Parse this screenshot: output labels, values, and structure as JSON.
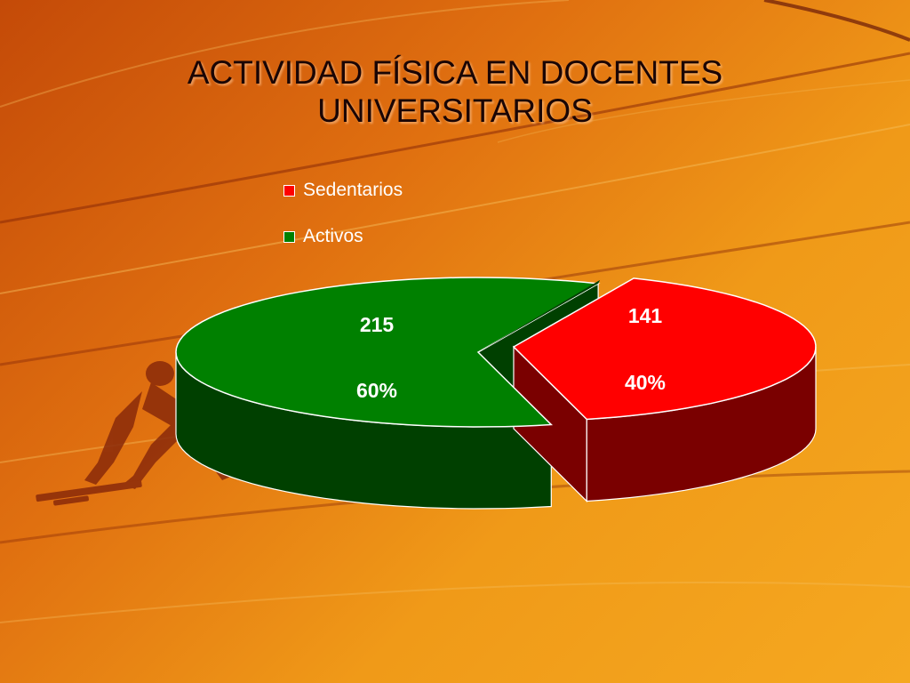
{
  "slide": {
    "title_line1": "ACTIVIDAD FÍSICA EN DOCENTES",
    "title_line2": "UNIVERSITARIOS"
  },
  "chart_data": {
    "type": "pie",
    "style": "3d-exploded",
    "title": "ACTIVIDAD FÍSICA EN DOCENTES UNIVERSITARIOS",
    "legend_position": "top",
    "slices": [
      {
        "name": "Sedentarios",
        "value": 141,
        "percent": "40%",
        "value_label": "141",
        "color": "#ff0000",
        "side_color": "#7a0000"
      },
      {
        "name": "Activos",
        "value": 215,
        "percent": "60%",
        "value_label": "215",
        "color": "#008000",
        "side_color": "#004000"
      }
    ]
  },
  "colors": {
    "background_dark": "#c44a08",
    "background_light": "#f5a820",
    "title_text": "#1a0505",
    "label_text": "#ffffff"
  }
}
